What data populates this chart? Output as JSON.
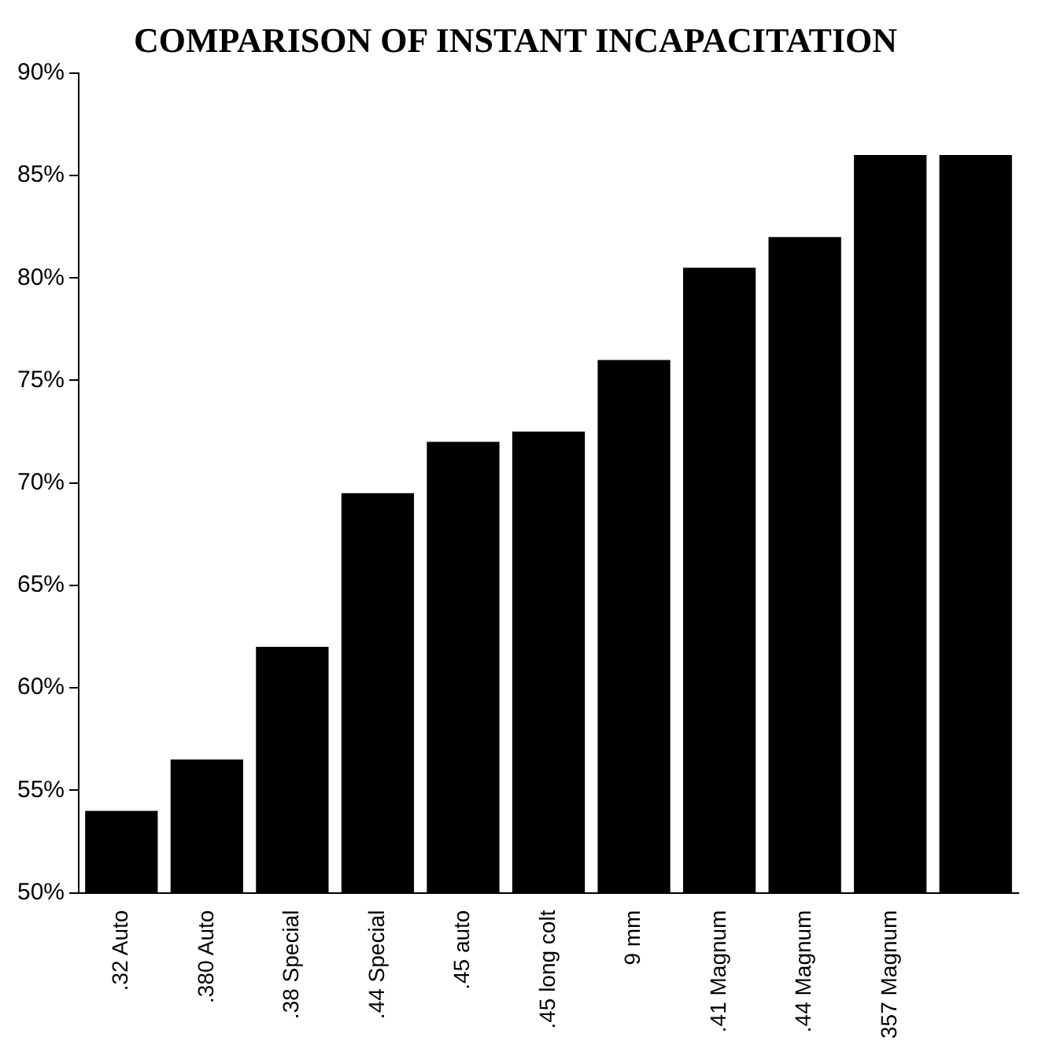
{
  "chart_data": {
    "type": "bar",
    "title": "COMPARISON OF INSTANT INCAPACITATION",
    "categories": [
      ".32 Auto",
      ".380 Auto",
      ".38 Special",
      ".44 Special",
      ".45 auto",
      ".45 long colt",
      "9 mm",
      ".41 Magnum",
      ".44 Magnum",
      "357 Magnum",
      null
    ],
    "values": [
      54,
      56.5,
      62,
      69.5,
      72,
      72.5,
      76,
      80.5,
      82,
      86,
      86
    ],
    "color": "#000000",
    "ylim": [
      50,
      90
    ],
    "yticks": [
      {
        "value": 50,
        "label": "50%"
      },
      {
        "value": 55,
        "label": "55%"
      },
      {
        "value": 60,
        "label": "60%"
      },
      {
        "value": 65,
        "label": "65%"
      },
      {
        "value": 70,
        "label": "70%"
      },
      {
        "value": 75,
        "label": "75%"
      },
      {
        "value": 80,
        "label": "80%"
      },
      {
        "value": 85,
        "label": "85%"
      },
      {
        "value": 90,
        "label": "90%"
      }
    ],
    "grid": false,
    "legend": false
  }
}
